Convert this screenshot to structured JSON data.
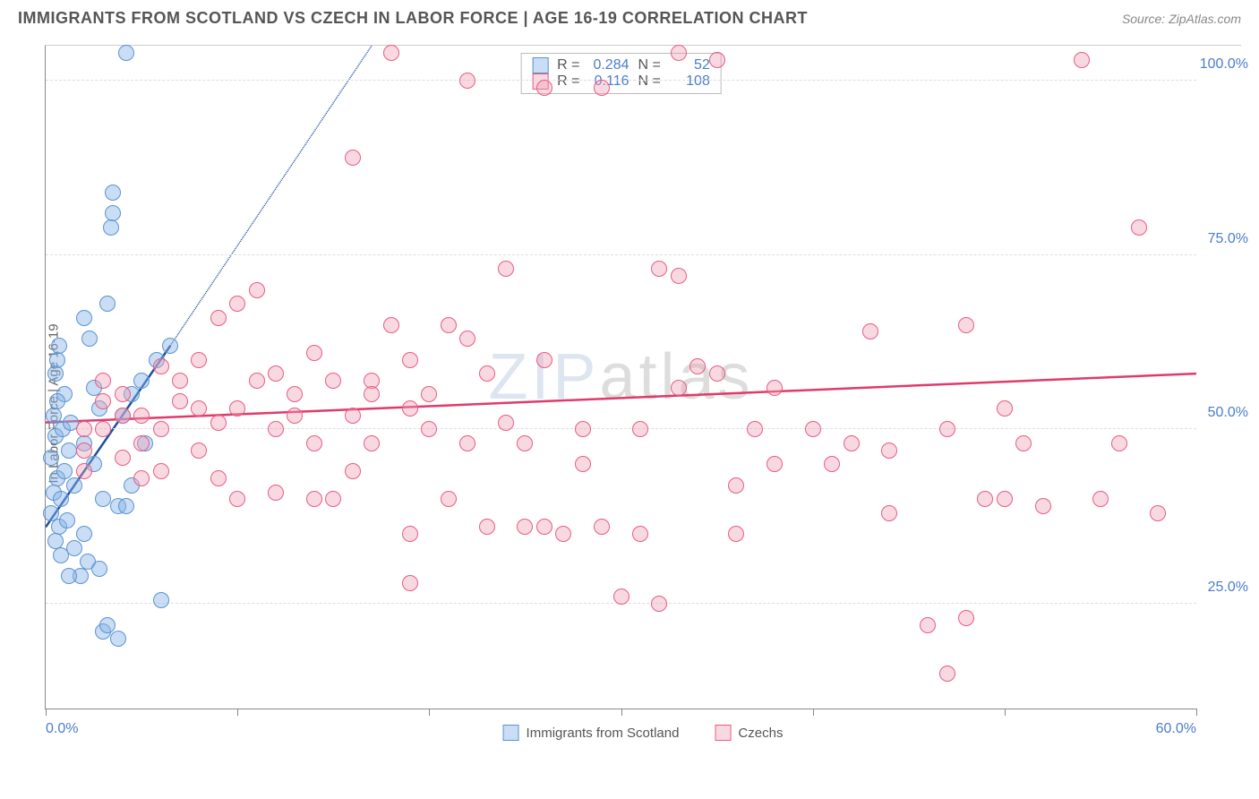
{
  "header": {
    "title": "IMMIGRANTS FROM SCOTLAND VS CZECH IN LABOR FORCE | AGE 16-19 CORRELATION CHART",
    "source": "Source: ZipAtlas.com"
  },
  "chart": {
    "type": "scatter",
    "y_axis_label": "In Labor Force | Age 16-19",
    "watermark_a": "ZIP",
    "watermark_b": "atlas",
    "background_color": "#ffffff",
    "grid_color": "#dddddd",
    "axis_color": "#888888",
    "tick_label_color": "#4a7ec9",
    "xlim": [
      0,
      60
    ],
    "ylim": [
      10,
      105
    ],
    "x_ticks": [
      0,
      10,
      20,
      30,
      40,
      50,
      60
    ],
    "x_tick_labels": {
      "0": "0.0%",
      "60": "60.0%"
    },
    "y_gridlines": [
      25,
      50,
      75,
      100
    ],
    "y_tick_labels": {
      "25": "25.0%",
      "50": "50.0%",
      "75": "75.0%",
      "100": "100.0%"
    },
    "point_radius": 9,
    "point_stroke_width": 1.5,
    "series": [
      {
        "name": "Immigrants from Scotland",
        "color_fill": "rgba(135,180,230,0.45)",
        "color_stroke": "#5a93d1",
        "r_label": "R =",
        "r_value": "0.284",
        "n_label": "N =",
        "n_value": "52",
        "trend_color": "#1e4fa0",
        "trend_solid": {
          "x1": 0,
          "y1": 36,
          "x2": 6.5,
          "y2": 62
        },
        "trend_dashed": {
          "x1": 6.5,
          "y1": 62,
          "x2": 17,
          "y2": 105
        },
        "points": [
          [
            4.2,
            104
          ],
          [
            0.5,
            49
          ],
          [
            0.3,
            46
          ],
          [
            0.6,
            43
          ],
          [
            0.4,
            41
          ],
          [
            0.8,
            40
          ],
          [
            1.0,
            44
          ],
          [
            1.2,
            47
          ],
          [
            0.9,
            50
          ],
          [
            2.5,
            45
          ],
          [
            3.0,
            40
          ],
          [
            3.8,
            39
          ],
          [
            4.0,
            52
          ],
          [
            4.5,
            55
          ],
          [
            5.0,
            57
          ],
          [
            5.8,
            60
          ],
          [
            6.5,
            62
          ],
          [
            2.0,
            35
          ],
          [
            2.2,
            31
          ],
          [
            2.8,
            30
          ],
          [
            0.7,
            36
          ],
          [
            1.1,
            37
          ],
          [
            1.5,
            33
          ],
          [
            1.8,
            29
          ],
          [
            3.0,
            21
          ],
          [
            3.2,
            22
          ],
          [
            3.8,
            20
          ],
          [
            6.0,
            25.5
          ],
          [
            3.5,
            84
          ],
          [
            3.5,
            81
          ],
          [
            3.4,
            79
          ],
          [
            0.6,
            60
          ],
          [
            0.7,
            62
          ],
          [
            0.5,
            58
          ],
          [
            1.0,
            55
          ],
          [
            2.0,
            66
          ],
          [
            2.3,
            63
          ],
          [
            0.4,
            52
          ],
          [
            0.6,
            54
          ],
          [
            1.3,
            51
          ],
          [
            1.5,
            42
          ],
          [
            2.0,
            48
          ],
          [
            0.3,
            38
          ],
          [
            0.5,
            34
          ],
          [
            0.8,
            32
          ],
          [
            1.2,
            29
          ],
          [
            4.2,
            39
          ],
          [
            4.5,
            42
          ],
          [
            5.2,
            48
          ],
          [
            3.2,
            68
          ],
          [
            2.8,
            53
          ],
          [
            2.5,
            56
          ]
        ]
      },
      {
        "name": "Czechs",
        "color_fill": "rgba(240,160,180,0.40)",
        "color_stroke": "#e85b84",
        "r_label": "R =",
        "r_value": "0.116",
        "n_label": "N =",
        "n_value": "108",
        "trend_color": "#e03a6b",
        "trend_solid": {
          "x1": 0,
          "y1": 51,
          "x2": 60,
          "y2": 58
        },
        "points": [
          [
            18,
            104
          ],
          [
            22,
            100
          ],
          [
            26,
            99
          ],
          [
            33,
            104
          ],
          [
            35,
            103
          ],
          [
            54,
            103
          ],
          [
            29,
            99
          ],
          [
            16,
            89
          ],
          [
            4,
            55
          ],
          [
            5,
            52
          ],
          [
            6,
            50
          ],
          [
            7,
            54
          ],
          [
            8,
            53
          ],
          [
            9,
            51
          ],
          [
            10,
            53
          ],
          [
            11,
            57
          ],
          [
            12,
            50
          ],
          [
            13,
            52
          ],
          [
            14,
            48
          ],
          [
            15,
            57
          ],
          [
            16,
            52
          ],
          [
            6,
            59
          ],
          [
            7,
            57
          ],
          [
            8,
            60
          ],
          [
            11,
            70
          ],
          [
            12,
            58
          ],
          [
            13,
            55
          ],
          [
            14,
            61
          ],
          [
            5,
            48
          ],
          [
            6,
            44
          ],
          [
            8,
            47
          ],
          [
            9,
            43
          ],
          [
            10,
            40
          ],
          [
            12,
            41
          ],
          [
            14,
            40
          ],
          [
            16,
            44
          ],
          [
            17,
            48
          ],
          [
            18,
            65
          ],
          [
            19,
            60
          ],
          [
            20,
            55
          ],
          [
            20,
            50
          ],
          [
            21,
            65
          ],
          [
            22,
            63
          ],
          [
            23,
            58
          ],
          [
            24,
            51
          ],
          [
            19,
            35
          ],
          [
            19,
            28
          ],
          [
            21,
            40
          ],
          [
            22,
            48
          ],
          [
            24,
            73
          ],
          [
            25,
            48
          ],
          [
            26,
            36
          ],
          [
            27,
            35
          ],
          [
            28,
            50
          ],
          [
            29,
            36
          ],
          [
            31,
            50
          ],
          [
            32,
            73
          ],
          [
            33,
            72
          ],
          [
            34,
            59
          ],
          [
            35,
            58
          ],
          [
            30,
            26
          ],
          [
            31,
            35
          ],
          [
            32,
            25
          ],
          [
            36,
            35
          ],
          [
            37,
            50
          ],
          [
            38,
            56
          ],
          [
            38,
            45
          ],
          [
            42,
            48
          ],
          [
            43,
            64
          ],
          [
            44,
            47
          ],
          [
            44,
            38
          ],
          [
            46,
            22
          ],
          [
            48,
            65
          ],
          [
            49,
            40
          ],
          [
            50,
            40
          ],
          [
            50,
            53
          ],
          [
            51,
            48
          ],
          [
            52,
            39
          ],
          [
            47,
            15
          ],
          [
            48,
            23
          ],
          [
            55,
            40
          ],
          [
            56,
            48
          ],
          [
            57,
            79
          ],
          [
            58,
            38
          ],
          [
            3,
            57
          ],
          [
            3,
            50
          ],
          [
            4,
            46
          ],
          [
            4,
            52
          ],
          [
            5,
            43
          ],
          [
            2,
            50
          ],
          [
            2,
            47
          ],
          [
            2,
            44
          ],
          [
            3,
            54
          ],
          [
            15,
            40
          ],
          [
            17,
            57
          ],
          [
            23,
            36
          ],
          [
            33,
            56
          ],
          [
            36,
            42
          ],
          [
            40,
            50
          ],
          [
            41,
            45
          ],
          [
            17,
            55
          ],
          [
            19,
            53
          ],
          [
            10,
            68
          ],
          [
            9,
            66
          ],
          [
            26,
            60
          ],
          [
            28,
            45
          ],
          [
            25,
            36
          ],
          [
            47,
            50
          ]
        ]
      }
    ]
  },
  "legend": {
    "item1_label": "Immigrants from Scotland",
    "item2_label": "Czechs"
  }
}
